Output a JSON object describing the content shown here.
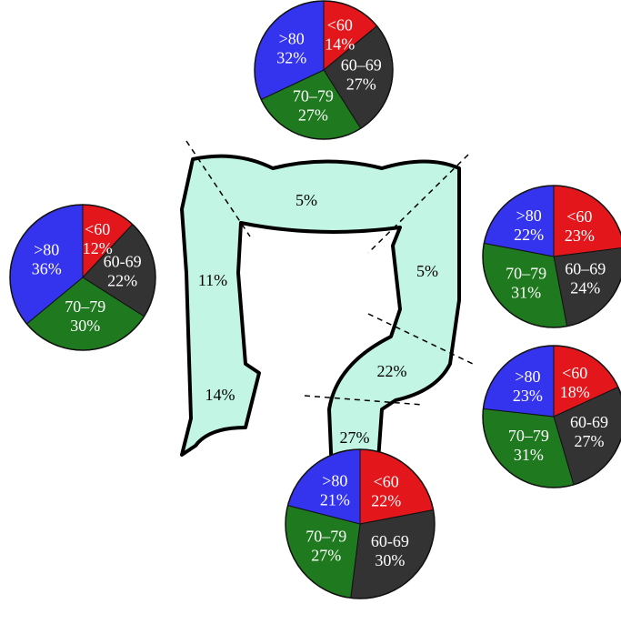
{
  "chart_data": [
    {
      "type": "pie",
      "categories": [
        "<60",
        "60–69",
        "70–79",
        ">80"
      ],
      "values": [
        14,
        27,
        27,
        32
      ],
      "value_labels": [
        "14%",
        "27%",
        "27%",
        "32%"
      ],
      "colors": [
        "#e3161c",
        "#333333",
        "#1f7a1f",
        "#3434ee"
      ]
    },
    {
      "type": "pie",
      "categories": [
        "<60",
        "60-69",
        "70–79",
        ">80"
      ],
      "values": [
        12,
        22,
        30,
        36
      ],
      "value_labels": [
        "12%",
        "22%",
        "30%",
        "36%"
      ],
      "colors": [
        "#e3161c",
        "#333333",
        "#1f7a1f",
        "#3434ee"
      ]
    },
    {
      "type": "pie",
      "categories": [
        "<60",
        "60–69",
        "70–79",
        ">80"
      ],
      "values": [
        23,
        24,
        31,
        22
      ],
      "value_labels": [
        "23%",
        "24%",
        "31%",
        "22%"
      ],
      "colors": [
        "#e3161c",
        "#333333",
        "#1f7a1f",
        "#3434ee"
      ]
    },
    {
      "type": "pie",
      "categories": [
        "<60",
        "60-69",
        "70–79",
        ">80"
      ],
      "values": [
        18,
        27,
        31,
        23
      ],
      "value_labels": [
        "18%",
        "27%",
        "31%",
        "23%"
      ],
      "colors": [
        "#e3161c",
        "#333333",
        "#1f7a1f",
        "#3434ee"
      ]
    },
    {
      "type": "pie",
      "categories": [
        "<60",
        "60-69",
        "70–79",
        ">80"
      ],
      "values": [
        22,
        30,
        27,
        21
      ],
      "value_labels": [
        "22%",
        "30%",
        "27%",
        "21%"
      ],
      "colors": [
        "#e3161c",
        "#333333",
        "#1f7a1f",
        "#3434ee"
      ]
    }
  ],
  "colon": {
    "segment_labels": [
      "5%",
      "11%",
      "14%",
      "5%",
      "22%",
      "27%"
    ]
  }
}
